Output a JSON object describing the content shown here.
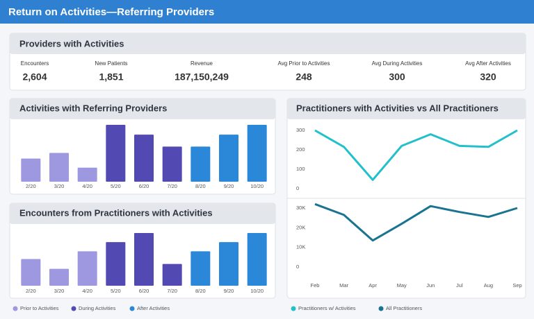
{
  "header": {
    "title": "Return on Activities—Referring Providers"
  },
  "kpis": {
    "title": "Providers with Activities",
    "items": [
      {
        "label": "Encounters",
        "value": "2,604"
      },
      {
        "label": "New Patients",
        "value": "1,851"
      },
      {
        "label": "Revenue",
        "value": "187,150,249"
      },
      {
        "label": "Avg Prior to Activities",
        "value": "248"
      },
      {
        "label": "Avg During Activities",
        "value": "300"
      },
      {
        "label": "Avg After Activities",
        "value": "320"
      }
    ]
  },
  "chart_data": [
    {
      "type": "bar",
      "title": "Activities with Referring Providers",
      "categories": [
        "2/20",
        "3/20",
        "4/20",
        "5/20",
        "6/20",
        "7/20",
        "8/20",
        "9/20",
        "10/20"
      ],
      "series": [
        {
          "name": "Prior to Activities",
          "color": "#9d98e0",
          "values": [
            33,
            41,
            20,
            null,
            null,
            null,
            null,
            null,
            null
          ]
        },
        {
          "name": "During Activities",
          "color": "#5249b3",
          "values": [
            null,
            null,
            null,
            81,
            67,
            50,
            null,
            null,
            null
          ]
        },
        {
          "name": "After Activities",
          "color": "#2b87d8",
          "values": [
            null,
            null,
            null,
            null,
            null,
            null,
            50,
            67,
            81
          ]
        }
      ]
    },
    {
      "type": "bar",
      "title": "Encounters from Practitioners with Activities",
      "categories": [
        "2/20",
        "3/20",
        "4/20",
        "5/20",
        "6/20",
        "7/20",
        "8/20",
        "9/20",
        "10/20"
      ],
      "series": [
        {
          "color": "#9d98e0",
          "values": [
            38,
            24,
            49,
            null,
            null,
            null,
            null,
            null,
            null
          ]
        },
        {
          "color": "#5249b3",
          "values": [
            null,
            null,
            null,
            62,
            75,
            31,
            null,
            null,
            null
          ]
        },
        {
          "color": "#2b87d8",
          "values": [
            null,
            null,
            null,
            null,
            null,
            null,
            49,
            62,
            75
          ]
        }
      ]
    },
    {
      "type": "line",
      "title": "Practitioners with Activities vs All Practitioners",
      "series": [
        {
          "name": "Practitioners w/ Activities",
          "color": "#21c0cb",
          "values": [
            300,
            215,
            45,
            220,
            280,
            220,
            215,
            300
          ]
        }
      ],
      "ylim": [
        0,
        300
      ],
      "yticks": [
        0,
        100,
        200,
        300
      ]
    },
    {
      "type": "line",
      "categories": [
        "Feb",
        "Mar",
        "Apr",
        "May",
        "Jun",
        "Jul",
        "Aug",
        "Sep"
      ],
      "series": [
        {
          "name": "All Practitioners",
          "color": "#1a7390",
          "values": [
            32000,
            26500,
            13500,
            22000,
            31000,
            28000,
            25500,
            30000
          ]
        }
      ],
      "ylim": [
        0,
        30000
      ],
      "yticks": [
        0,
        {
          "value": 10000,
          "label": "10K"
        },
        {
          "value": 20000,
          "label": "20K"
        },
        {
          "value": 30000,
          "label": "30K"
        }
      ]
    }
  ]
}
